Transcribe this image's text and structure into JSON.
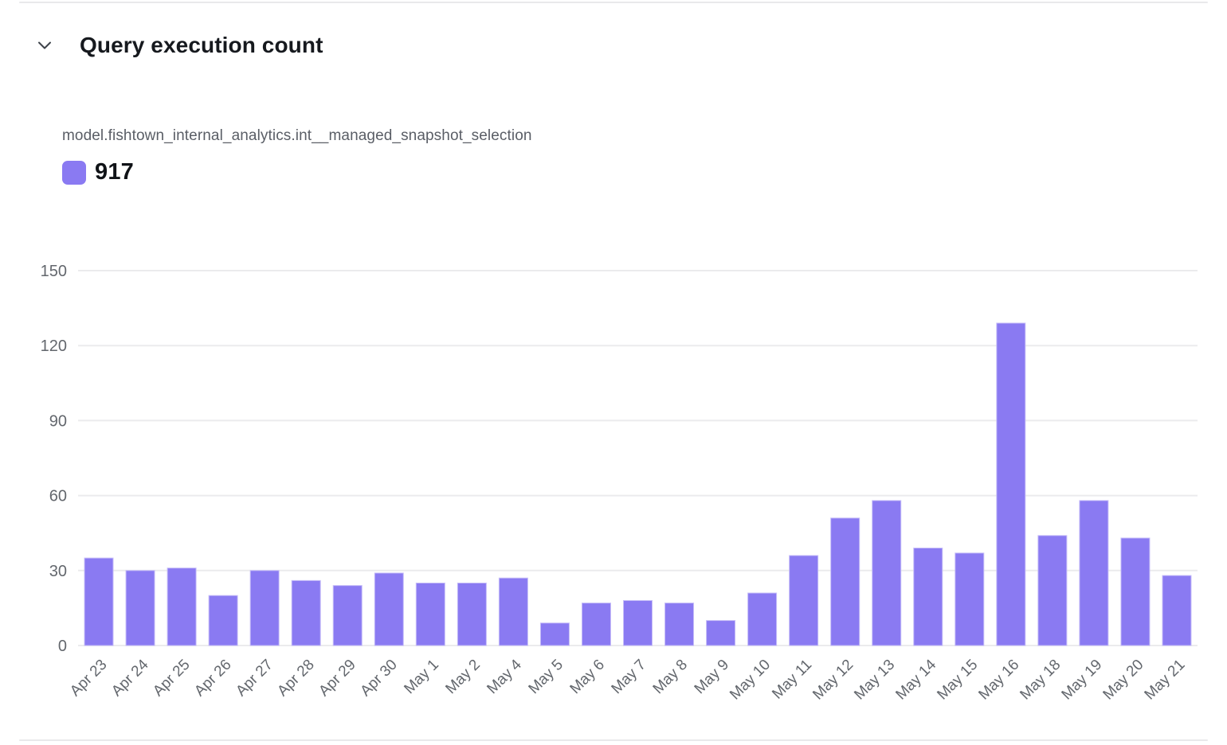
{
  "header": {
    "title": "Query execution count"
  },
  "series": {
    "label": "model.fishtown_internal_analytics.int__managed_snapshot_selection",
    "total_label": "917"
  },
  "legend": {
    "swatch_color": "#8a7af2"
  },
  "colors": {
    "bar_fill": "#8a7af2",
    "bar_stroke": "#c6bdf8",
    "grid": "#ebebed",
    "tick_label": "#63676d",
    "title_text": "#16191e",
    "divider": "#e9e9eb"
  },
  "chart_data": {
    "type": "bar",
    "title": "Query execution count",
    "series_name": "model.fishtown_internal_analytics.int__managed_snapshot_selection",
    "series_total": 917,
    "categories": [
      "Apr 23",
      "Apr 24",
      "Apr 25",
      "Apr 26",
      "Apr 27",
      "Apr 28",
      "Apr 29",
      "Apr 30",
      "May 1",
      "May 2",
      "May 4",
      "May 5",
      "May 6",
      "May 7",
      "May 8",
      "May 9",
      "May 10",
      "May 11",
      "May 12",
      "May 13",
      "May 14",
      "May 15",
      "May 16",
      "May 18",
      "May 19",
      "May 20",
      "May 21"
    ],
    "values": [
      35,
      30,
      31,
      20,
      30,
      26,
      24,
      29,
      25,
      25,
      27,
      9,
      17,
      18,
      17,
      10,
      21,
      36,
      51,
      58,
      39,
      37,
      129,
      44,
      58,
      43,
      28
    ],
    "xlabel": "",
    "ylabel": "",
    "ylim": [
      0,
      150
    ],
    "yticks": [
      0,
      30,
      60,
      90,
      120,
      150
    ],
    "grid": true,
    "legend_position": "top-left",
    "x_label_rotation": -45
  }
}
